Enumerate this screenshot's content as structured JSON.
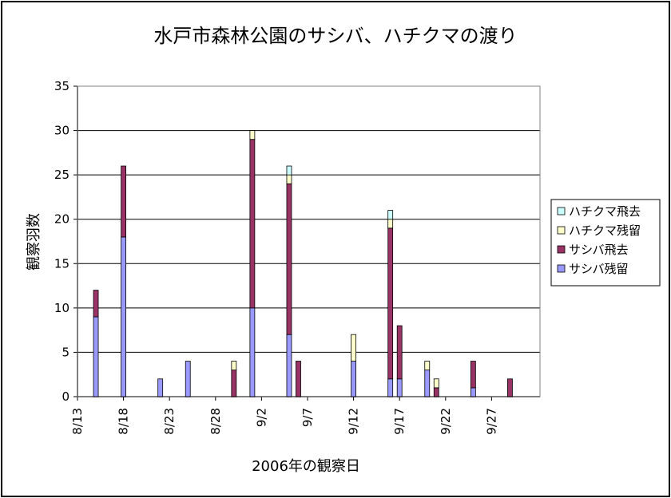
{
  "chart_data": {
    "type": "bar",
    "stacked": true,
    "title": "水戸市森林公園のサシバ、ハチクマの渡り",
    "xlabel": "2006年の観察日",
    "ylabel": "観察羽数",
    "ylim": [
      0,
      35
    ],
    "yticks": [
      0,
      5,
      10,
      15,
      20,
      25,
      30,
      35
    ],
    "xticks": [
      "8/13",
      "8/18",
      "8/23",
      "8/28",
      "9/2",
      "9/7",
      "9/12",
      "9/17",
      "9/22",
      "9/27"
    ],
    "grid": true,
    "legend_position": "right",
    "dates": [
      "8/15",
      "8/18",
      "8/22",
      "8/25",
      "8/30",
      "9/1",
      "9/5",
      "9/6",
      "9/12",
      "9/16",
      "9/17",
      "9/20",
      "9/21",
      "9/25",
      "9/29"
    ],
    "series": [
      {
        "name": "サシバ残留",
        "color": "#9999ff",
        "values": [
          9,
          18,
          2,
          4,
          0,
          10,
          7,
          0,
          4,
          2,
          2,
          3,
          0,
          1,
          0
        ]
      },
      {
        "name": "サシバ飛去",
        "color": "#993366",
        "values": [
          3,
          8,
          0,
          0,
          3,
          19,
          17,
          4,
          0,
          17,
          6,
          0,
          1,
          3,
          2
        ]
      },
      {
        "name": "ハチクマ残留",
        "color": "#ffffcc",
        "values": [
          0,
          0,
          0,
          0,
          1,
          1,
          1,
          0,
          3,
          1,
          0,
          1,
          1,
          0,
          0
        ]
      },
      {
        "name": "ハチクマ飛去",
        "color": "#ccffff",
        "values": [
          0,
          0,
          0,
          0,
          0,
          0,
          1,
          0,
          0,
          1,
          0,
          0,
          0,
          0,
          0
        ]
      }
    ]
  }
}
